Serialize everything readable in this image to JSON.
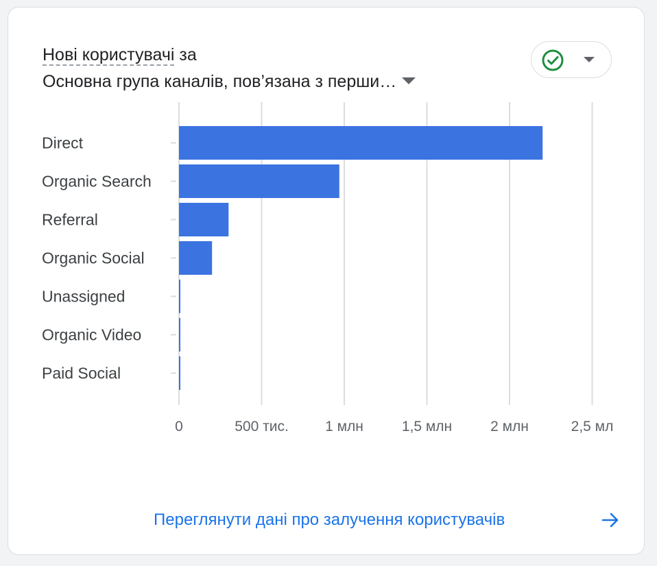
{
  "card": {
    "title_metric": "Нові користувачі",
    "title_connector": " за",
    "title_dimension": "Основна група каналів, пов’язана з перши…",
    "status_icon": "check-circle-icon",
    "footer_link": "Переглянути дані про залучення користувачів"
  },
  "chart_data": {
    "type": "bar",
    "orientation": "horizontal",
    "categories": [
      "Direct",
      "Organic Search",
      "Referral",
      "Organic Social",
      "Unassigned",
      "Organic Video",
      "Paid Social"
    ],
    "values": [
      2200000,
      970000,
      300000,
      200000,
      4000,
      3000,
      2000
    ],
    "xlim": [
      0,
      2500000
    ],
    "x_ticks": [
      0,
      500000,
      1000000,
      1500000,
      2000000,
      2500000
    ],
    "x_tick_labels": [
      "0",
      "500 тис.",
      "1 млн",
      "1,5 млн",
      "2 млн",
      "2,5 мл"
    ],
    "grid": true,
    "bar_color": "#3b73e0"
  },
  "colors": {
    "accent": "#1a73e8",
    "bar": "#3b73e0",
    "status_green": "#1e8e3e",
    "gridline": "#dadce0"
  }
}
